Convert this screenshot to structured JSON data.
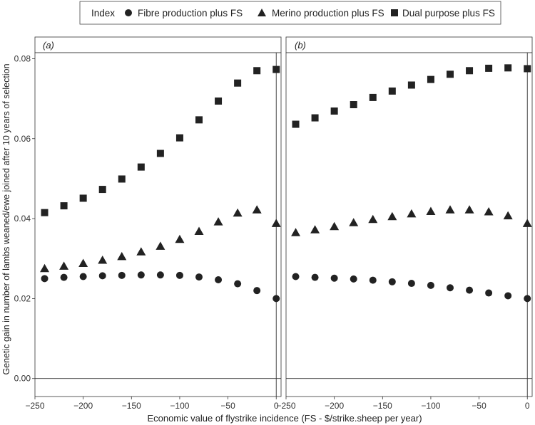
{
  "chart_data": {
    "type": "scatter",
    "ylabel": "Genetic gain in number of lambs weaned/ewe joined after 10 years of selection",
    "xlabel": "Economic value of flystrike incidence (FS - $/strike.sheep per year)",
    "legend": {
      "title": "Index",
      "placement": "top",
      "entries": [
        {
          "label": "Fibre production plus FS",
          "marker": "circle"
        },
        {
          "label": "Merino production plus FS",
          "marker": "triangle"
        },
        {
          "label": "Dual purpose plus FS",
          "marker": "square"
        }
      ]
    },
    "xlim": [
      -250,
      5
    ],
    "ylim": [
      -0.0045,
      0.0815
    ],
    "x_ticks": [
      -250,
      -200,
      -150,
      -100,
      -50,
      0
    ],
    "y_ticks": [
      0.0,
      0.02,
      0.04,
      0.06,
      0.08
    ],
    "x_tick_labels": [
      "−250",
      "−200",
      "−150",
      "−100",
      "−50",
      "0"
    ],
    "y_tick_labels": [
      "0.00",
      "0.02",
      "0.04",
      "0.06",
      "0.08"
    ],
    "reference_lines": {
      "x": 0,
      "y": 0
    },
    "grid": false,
    "x": [
      -240,
      -220,
      -200,
      -180,
      -160,
      -140,
      -120,
      -100,
      -80,
      -60,
      -40,
      -20,
      0
    ],
    "panels": [
      {
        "label": "(a)",
        "series": [
          {
            "name": "Fibre production plus FS",
            "marker": "circle",
            "values": [
              0.025,
              0.0253,
              0.0255,
              0.0257,
              0.0258,
              0.0259,
              0.0259,
              0.0258,
              0.0254,
              0.0247,
              0.0237,
              0.022,
              0.02
            ]
          },
          {
            "name": "Merino production plus FS",
            "marker": "triangle",
            "values": [
              0.0275,
              0.0281,
              0.0288,
              0.0296,
              0.0305,
              0.0317,
              0.0331,
              0.0348,
              0.0368,
              0.0392,
              0.0414,
              0.0422,
              0.0388
            ]
          },
          {
            "name": "Dual purpose plus FS",
            "marker": "square",
            "values": [
              0.0415,
              0.0432,
              0.0451,
              0.0473,
              0.0499,
              0.0529,
              0.0563,
              0.0602,
              0.0647,
              0.0694,
              0.0739,
              0.077,
              0.0773
            ]
          }
        ]
      },
      {
        "label": "(b)",
        "series": [
          {
            "name": "Fibre production plus FS",
            "marker": "circle",
            "values": [
              0.0255,
              0.0253,
              0.0251,
              0.0249,
              0.0246,
              0.0242,
              0.0238,
              0.0233,
              0.0227,
              0.0221,
              0.0214,
              0.0207,
              0.02
            ]
          },
          {
            "name": "Merino production plus FS",
            "marker": "triangle",
            "values": [
              0.0365,
              0.0372,
              0.038,
              0.039,
              0.0398,
              0.0405,
              0.0412,
              0.0418,
              0.0422,
              0.0422,
              0.0417,
              0.0407,
              0.0388
            ]
          },
          {
            "name": "Dual purpose plus FS",
            "marker": "square",
            "values": [
              0.0636,
              0.0652,
              0.0669,
              0.0685,
              0.0703,
              0.0719,
              0.0734,
              0.0748,
              0.0761,
              0.077,
              0.0776,
              0.0777,
              0.0775
            ]
          }
        ]
      }
    ]
  }
}
